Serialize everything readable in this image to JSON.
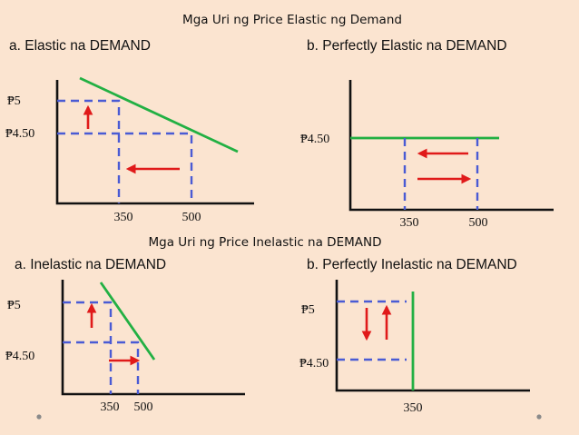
{
  "titles": {
    "top": "Mga Uri ng Price Elastic ng Demand",
    "bottom": "Mga Uri ng Price Inelastic na DEMAND"
  },
  "panels": {
    "elastic": {
      "label": "a.   Elastic na DEMAND",
      "y_high": "₱5",
      "y_low": "₱4.50",
      "x_left": "350",
      "x_right": "500"
    },
    "perfectly_elastic": {
      "label": "b. Perfectly  Elastic na DEMAND",
      "y_low": "₱4.50",
      "x_left": "350",
      "x_right": "500"
    },
    "inelastic": {
      "label": "a. Inelastic na DEMAND",
      "y_high": "₱5",
      "y_low": "₱4.50",
      "x_left": "350",
      "x_right": "500"
    },
    "perfectly_inelastic": {
      "label": "b. Perfectly Inelastic na DEMAND",
      "y_high": "₱5",
      "y_low": "₱4.50",
      "x_left": "350"
    }
  },
  "colors": {
    "background": "#fbe4d0",
    "demand_curve": "#22b043",
    "guide_lines": "#4a5bd4",
    "arrows": "#e01a1a",
    "axes": "#111111"
  }
}
